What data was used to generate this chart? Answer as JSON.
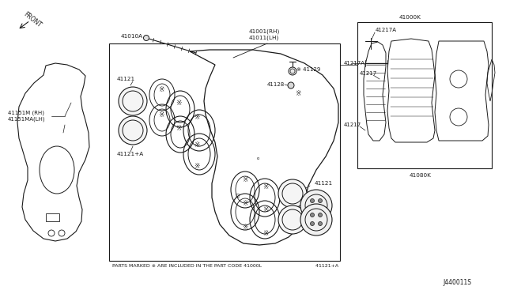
{
  "bg_color": "#ffffff",
  "line_color": "#1a1a1a",
  "text_color": "#1a1a1a",
  "diagram_id": "J440011S",
  "footnote": "PARTS MARKED ※ ARE INCLUDED IN THE PART CODE 41000L",
  "footnote2": "41121+A"
}
